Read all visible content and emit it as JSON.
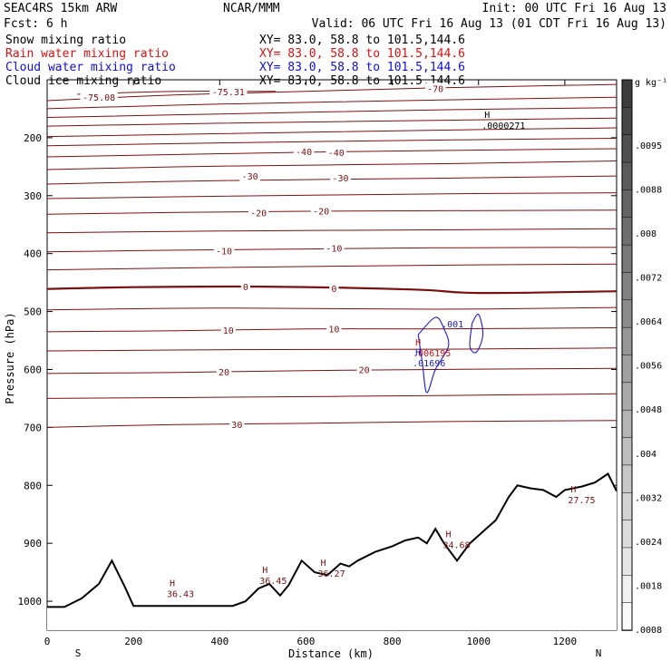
{
  "header": {
    "model": "SEAC4RS 15km ARW",
    "center": "NCAR/MMM",
    "init": "Init: 00 UTC Fri 16 Aug 13",
    "fcst": "Fcst:    6 h",
    "valid": "Valid: 06 UTC Fri 16 Aug 13 (01 CDT Fri 16 Aug 13)",
    "fields": [
      {
        "name": "Snow mixing ratio",
        "xy": "XY=  83.0, 58.8 to 101.5,144.6",
        "color": "#000000"
      },
      {
        "name": "Rain water mixing ratio",
        "xy": "XY=  83.0, 58.8 to 101.5,144.6",
        "color": "#e01010"
      },
      {
        "name": "Cloud water mixing ratio",
        "xy": "XY=  83.0, 58.8 to 101.5,144.6",
        "color": "#1010d0"
      },
      {
        "name": "Cloud ice mixing ratio",
        "xy": "XY=  83.0, 58.8 to 101.5,144.6",
        "color": "#000000"
      }
    ]
  },
  "colors": {
    "temperature": "#7a1010",
    "cloud_water": "#1a1acc",
    "rain": "#cc1010",
    "terrain": "#000000"
  },
  "chart_data": {
    "type": "contour cross-section",
    "xlabel": "Distance (km)",
    "ylabel": "Pressure (hPa)",
    "xlim": [
      0,
      1320
    ],
    "ylim": [
      1050,
      100
    ],
    "x_ticks": [
      "0",
      "200",
      "400",
      "600",
      "800",
      "1000",
      "1200"
    ],
    "y_ticks": [
      "200",
      "300",
      "400",
      "500",
      "600",
      "700",
      "800",
      "900",
      "1000"
    ],
    "endpoint_labels": {
      "left": "S",
      "right": "N"
    },
    "isotherms": [
      {
        "t": -75,
        "pts": [
          [
            70,
            125
          ],
          [
            300,
            120
          ],
          [
            530,
            120
          ]
        ]
      },
      {
        "t": -70,
        "pts": [
          [
            0,
            136
          ],
          [
            300,
            126
          ],
          [
            600,
            120
          ],
          [
            900,
            114
          ],
          [
            1320,
            108
          ]
        ]
      },
      {
        "t": -65,
        "pts": [
          [
            0,
            150
          ],
          [
            400,
            142
          ],
          [
            900,
            135
          ],
          [
            1320,
            130
          ]
        ]
      },
      {
        "t": -60,
        "pts": [
          [
            0,
            165
          ],
          [
            400,
            159
          ],
          [
            900,
            152
          ],
          [
            1320,
            148
          ]
        ]
      },
      {
        "t": -55,
        "pts": [
          [
            0,
            180
          ],
          [
            400,
            175
          ],
          [
            900,
            170
          ],
          [
            1320,
            166
          ]
        ]
      },
      {
        "t": -50,
        "pts": [
          [
            0,
            198
          ],
          [
            400,
            193
          ],
          [
            900,
            187
          ],
          [
            1320,
            183
          ]
        ]
      },
      {
        "t": -45,
        "pts": [
          [
            0,
            214
          ],
          [
            400,
            209
          ],
          [
            900,
            204
          ],
          [
            1320,
            201
          ]
        ]
      },
      {
        "t": -40,
        "pts": [
          [
            0,
            233
          ],
          [
            300,
            229
          ],
          [
            600,
            225
          ],
          [
            900,
            222
          ],
          [
            1320,
            219
          ]
        ]
      },
      {
        "t": -35,
        "pts": [
          [
            0,
            255
          ],
          [
            400,
            249
          ],
          [
            900,
            245
          ],
          [
            1320,
            240
          ]
        ]
      },
      {
        "t": -30,
        "pts": [
          [
            0,
            280
          ],
          [
            400,
            274
          ],
          [
            900,
            270
          ],
          [
            1320,
            266
          ]
        ]
      },
      {
        "t": -25,
        "pts": [
          [
            0,
            305
          ],
          [
            400,
            301
          ],
          [
            900,
            297
          ],
          [
            1320,
            295
          ]
        ]
      },
      {
        "t": -20,
        "pts": [
          [
            0,
            332
          ],
          [
            300,
            329
          ],
          [
            600,
            327
          ],
          [
            900,
            326
          ],
          [
            1320,
            325
          ]
        ]
      },
      {
        "t": -15,
        "pts": [
          [
            0,
            364
          ],
          [
            400,
            361
          ],
          [
            900,
            359
          ],
          [
            1320,
            357
          ]
        ]
      },
      {
        "t": -10,
        "pts": [
          [
            0,
            397
          ],
          [
            300,
            394
          ],
          [
            600,
            392
          ],
          [
            900,
            390
          ],
          [
            1320,
            389
          ]
        ]
      },
      {
        "t": -5,
        "pts": [
          [
            0,
            428
          ],
          [
            400,
            424
          ],
          [
            900,
            420
          ],
          [
            1320,
            418
          ]
        ]
      },
      {
        "t": 0,
        "pts": [
          [
            0,
            461
          ],
          [
            200,
            458
          ],
          [
            500,
            457
          ],
          [
            850,
            462
          ],
          [
            1000,
            468
          ],
          [
            1320,
            465
          ]
        ]
      },
      {
        "t": 5,
        "pts": [
          [
            0,
            497
          ],
          [
            400,
            494
          ],
          [
            900,
            496
          ],
          [
            1320,
            493
          ]
        ]
      },
      {
        "t": 10,
        "pts": [
          [
            0,
            535
          ],
          [
            300,
            533
          ],
          [
            600,
            530
          ],
          [
            900,
            530
          ],
          [
            1320,
            528
          ]
        ]
      },
      {
        "t": 15,
        "pts": [
          [
            0,
            568
          ],
          [
            400,
            566
          ],
          [
            900,
            565
          ],
          [
            1320,
            563
          ]
        ]
      },
      {
        "t": 20,
        "pts": [
          [
            0,
            607
          ],
          [
            300,
            605
          ],
          [
            600,
            602
          ],
          [
            900,
            600
          ],
          [
            1320,
            598
          ]
        ]
      },
      {
        "t": 25,
        "pts": [
          [
            0,
            650
          ],
          [
            400,
            648
          ],
          [
            900,
            645
          ],
          [
            1320,
            642
          ]
        ]
      },
      {
        "t": 30,
        "pts": [
          [
            0,
            700
          ],
          [
            300,
            695
          ],
          [
            600,
            693
          ],
          [
            900,
            690
          ],
          [
            1320,
            688
          ]
        ]
      }
    ],
    "contour_labels": [
      {
        "x": 120,
        "p": 130,
        "text": "-75.08"
      },
      {
        "x": 420,
        "p": 120,
        "text": "-75.31"
      },
      {
        "x": 900,
        "p": 115,
        "text": "-70"
      },
      {
        "x": 595,
        "p": 224,
        "text": "-40"
      },
      {
        "x": 670,
        "p": 225,
        "text": "-40"
      },
      {
        "x": 470,
        "p": 266,
        "text": "-30"
      },
      {
        "x": 680,
        "p": 269,
        "text": "-30"
      },
      {
        "x": 490,
        "p": 329,
        "text": "-20"
      },
      {
        "x": 635,
        "p": 326,
        "text": "-20"
      },
      {
        "x": 410,
        "p": 395,
        "text": "-10"
      },
      {
        "x": 665,
        "p": 390,
        "text": "-10"
      },
      {
        "x": 460,
        "p": 457,
        "text": "0"
      },
      {
        "x": 665,
        "p": 460,
        "text": "0"
      },
      {
        "x": 420,
        "p": 532,
        "text": "10"
      },
      {
        "x": 665,
        "p": 530,
        "text": "10"
      },
      {
        "x": 410,
        "p": 604,
        "text": "20"
      },
      {
        "x": 735,
        "p": 600,
        "text": "20"
      },
      {
        "x": 440,
        "p": 695,
        "text": "30"
      }
    ],
    "maxima": [
      {
        "x": 1020,
        "p": 172,
        "text": ".0000271",
        "color": "#000000"
      },
      {
        "x": 860,
        "p": 565,
        "text": ".006195",
        "color": "#cc1010"
      },
      {
        "x": 860,
        "p": 582,
        "text": ".01696",
        "color": "#1a1acc"
      },
      {
        "x": 290,
        "p": 980,
        "text": "36.43",
        "color": "#7a1010"
      },
      {
        "x": 505,
        "p": 958,
        "text": "36.45",
        "color": "#7a1010"
      },
      {
        "x": 640,
        "p": 945,
        "text": "36.27",
        "color": "#7a1010"
      },
      {
        "x": 930,
        "p": 896,
        "text": "34.68",
        "color": "#7a1010"
      },
      {
        "x": 1220,
        "p": 818,
        "text": "27.75",
        "color": "#7a1010"
      }
    ],
    "cloud_contours": [
      {
        "label": ".001",
        "pts": [
          [
            860,
            540
          ],
          [
            900,
            510
          ],
          [
            920,
            530
          ],
          [
            930,
            560
          ],
          [
            900,
            600
          ],
          [
            880,
            640
          ],
          [
            870,
            590
          ],
          [
            860,
            540
          ]
        ]
      },
      {
        "label": "",
        "pts": [
          [
            985,
            520
          ],
          [
            1000,
            505
          ],
          [
            1010,
            540
          ],
          [
            995,
            570
          ],
          [
            980,
            560
          ],
          [
            985,
            520
          ]
        ]
      }
    ],
    "terrain_surface_hpa": [
      [
        0,
        1010
      ],
      [
        40,
        1010
      ],
      [
        80,
        995
      ],
      [
        120,
        970
      ],
      [
        150,
        930
      ],
      [
        180,
        975
      ],
      [
        200,
        1008
      ],
      [
        300,
        1008
      ],
      [
        430,
        1008
      ],
      [
        460,
        1000
      ],
      [
        490,
        978
      ],
      [
        515,
        970
      ],
      [
        540,
        990
      ],
      [
        560,
        972
      ],
      [
        590,
        930
      ],
      [
        620,
        950
      ],
      [
        650,
        955
      ],
      [
        680,
        935
      ],
      [
        700,
        940
      ],
      [
        720,
        930
      ],
      [
        760,
        915
      ],
      [
        800,
        905
      ],
      [
        830,
        895
      ],
      [
        860,
        890
      ],
      [
        880,
        900
      ],
      [
        900,
        875
      ],
      [
        920,
        900
      ],
      [
        950,
        930
      ],
      [
        980,
        900
      ],
      [
        1010,
        880
      ],
      [
        1040,
        860
      ],
      [
        1070,
        820
      ],
      [
        1090,
        800
      ],
      [
        1120,
        805
      ],
      [
        1150,
        808
      ],
      [
        1180,
        820
      ],
      [
        1200,
        808
      ],
      [
        1240,
        802
      ],
      [
        1270,
        795
      ],
      [
        1300,
        780
      ],
      [
        1320,
        810
      ]
    ],
    "colorbar": {
      "unit": "g kg⁻¹",
      "ticks": [
        ".0095",
        ".0088",
        ".008",
        ".0072",
        ".0064",
        ".0056",
        ".0048",
        ".004",
        ".0032",
        ".0024",
        ".0018",
        ".0008"
      ]
    }
  }
}
